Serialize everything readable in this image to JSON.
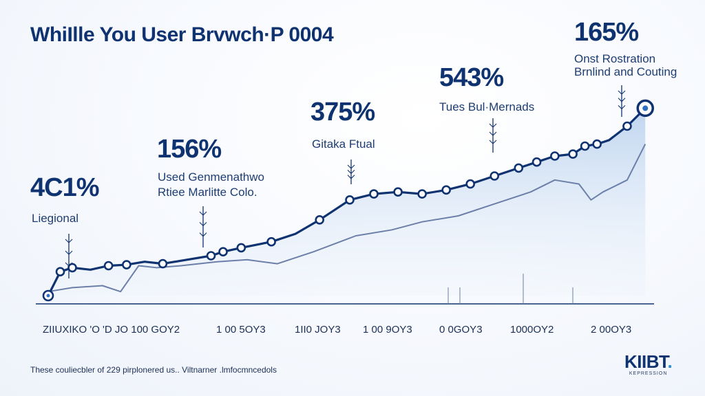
{
  "title": "WhiIlle You User Brvwch·P 0004",
  "colors": {
    "primary_line": "#0f3270",
    "secondary_line": "#6b7fa8",
    "area_fill": "#bcd3ee",
    "text": "#0f3270"
  },
  "callouts": [
    {
      "value": "4C1%",
      "label_lines": [
        "Liegional"
      ]
    },
    {
      "value": "156%",
      "label_lines": [
        "Used Genmenathwo",
        "Rtiee Marlitte Colo."
      ]
    },
    {
      "value": "375%",
      "label_lines": [
        "Gitaka Ftual"
      ]
    },
    {
      "value": "543%",
      "label_lines": [
        "Tues Bul·Mernads"
      ]
    },
    {
      "value": "165%",
      "label_lines": [
        "Onst Rostration",
        "Brnlind and Couting"
      ]
    }
  ],
  "footnote": "These couliecbler of 229 pirplonered us.. Viltnarner .lmfocmncedols",
  "logo": {
    "main": "KIIBT",
    "dot": ".",
    "sub": "KEPRESSION"
  },
  "chart_data": {
    "type": "line",
    "title": "WhiIlle You User Brvwch·P 0004",
    "x_tick_labels": [
      "ZIIUXIKO 'O 'D JO 100 GOY2",
      "1 00 5OY3",
      "1II0 JOY3",
      "1 00 9OY3",
      "0 0GOY3",
      "1000OY2",
      "2 00OY3"
    ],
    "ylim": [
      0,
      100
    ],
    "grid": false,
    "series": [
      {
        "x": [
          0,
          2,
          4,
          7,
          10,
          13,
          16,
          19,
          23,
          27,
          29,
          32,
          37,
          41,
          45,
          50,
          54,
          58,
          62,
          66,
          70,
          74,
          78,
          81,
          84,
          87,
          89,
          91,
          93,
          96,
          99
        ],
        "values": [
          0,
          12,
          14,
          13,
          15,
          15.5,
          17,
          16,
          18,
          20,
          22,
          24,
          27,
          31,
          38,
          48,
          51,
          52,
          51,
          53,
          56,
          60,
          64,
          67,
          70,
          71,
          75,
          76,
          78,
          85,
          94
        ],
        "markers": [
          0,
          1,
          2,
          4,
          5,
          7,
          9,
          10,
          11,
          12,
          14,
          15,
          16,
          17,
          18,
          19,
          20,
          21,
          22,
          23,
          24,
          25,
          26,
          27,
          29,
          30
        ]
      },
      {
        "x": [
          0,
          4,
          9,
          12,
          15,
          18,
          22,
          28,
          33,
          38,
          44,
          51,
          57,
          62,
          68,
          74,
          80,
          84,
          88,
          90,
          92,
          96,
          99
        ],
        "values": [
          2,
          4,
          5,
          2,
          15,
          14,
          15,
          17,
          18,
          16,
          22,
          30,
          33,
          37,
          40,
          46,
          52,
          58,
          56,
          48,
          52,
          58,
          76
        ]
      }
    ]
  }
}
